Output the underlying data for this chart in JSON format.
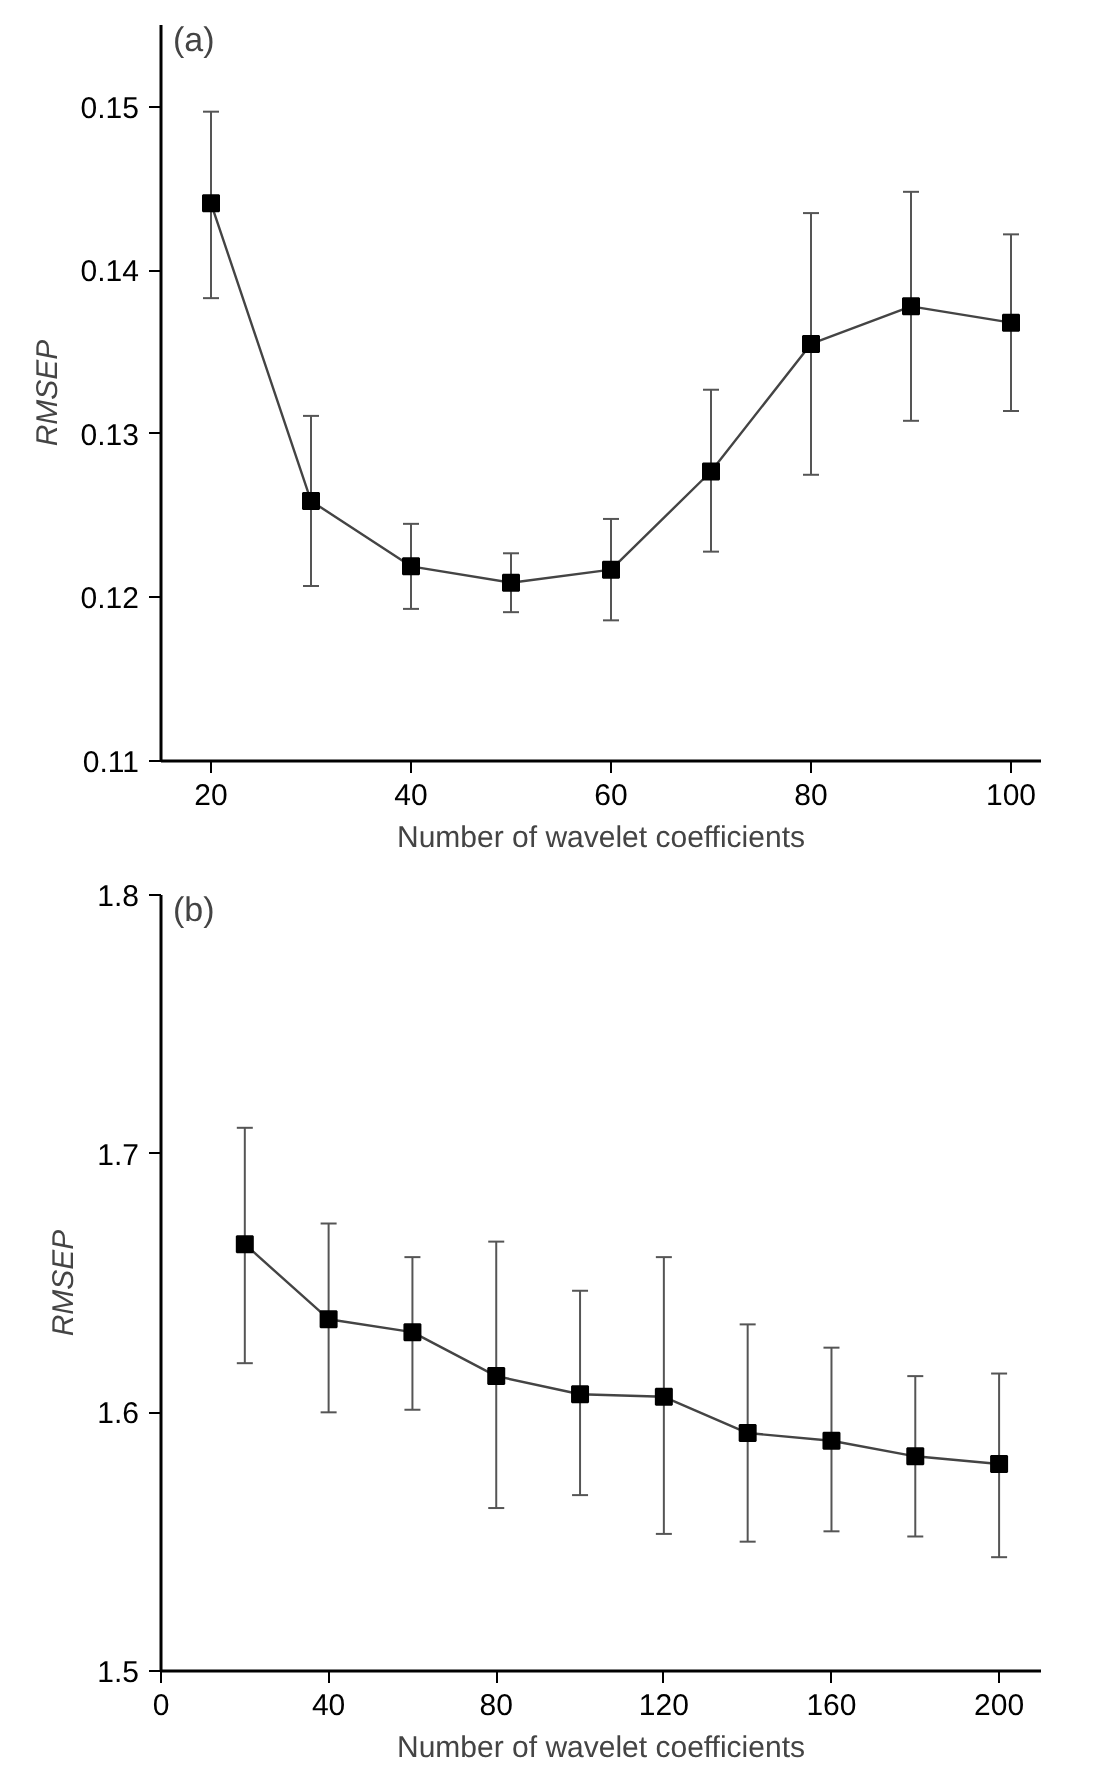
{
  "chart_data": [
    {
      "type": "line",
      "xlabel": "Number of wavelet coefficients",
      "ylabel": "RMSEP",
      "annotations": [
        "(a)"
      ],
      "marker": "square",
      "line_style": "solid",
      "x": [
        20,
        30,
        40,
        50,
        60,
        70,
        80,
        90,
        100
      ],
      "series": [
        {
          "color": "#000000",
          "values": [
            0.1441,
            0.1259,
            0.1219,
            0.1209,
            0.1217,
            0.1277,
            0.1355,
            0.1378,
            0.1368
          ],
          "errors": [
            [
              0.1383,
              0.1497
            ],
            [
              0.1207,
              0.1311
            ],
            [
              0.1193,
              0.1245
            ],
            [
              0.1191,
              0.1227
            ],
            [
              0.1186,
              0.1248
            ],
            [
              0.1228,
              0.1327
            ],
            [
              0.1275,
              0.1435
            ],
            [
              0.1308,
              0.1448
            ],
            [
              0.1314,
              0.1422
            ]
          ]
        }
      ],
      "xlim": [
        15,
        103
      ],
      "xticks": [
        20,
        40,
        60,
        80,
        100
      ],
      "ylim": [
        0.11,
        0.155
      ],
      "yticks": [
        0.11,
        0.12,
        0.13,
        0.14,
        0.15
      ]
    },
    {
      "type": "line",
      "xlabel": "Number of wavelet coefficients",
      "ylabel": "RMSEP",
      "annotations": [
        "(b)"
      ],
      "marker": "square",
      "line_style": "solid",
      "x": [
        20,
        40,
        60,
        80,
        100,
        120,
        140,
        160,
        180,
        200
      ],
      "series": [
        {
          "color": "#000000",
          "values": [
            1.665,
            1.636,
            1.631,
            1.614,
            1.607,
            1.606,
            1.592,
            1.589,
            1.583,
            1.58
          ],
          "errors": [
            [
              1.619,
              1.71
            ],
            [
              1.6,
              1.673
            ],
            [
              1.601,
              1.66
            ],
            [
              1.563,
              1.666
            ],
            [
              1.568,
              1.647
            ],
            [
              1.553,
              1.66
            ],
            [
              1.55,
              1.634
            ],
            [
              1.554,
              1.625
            ],
            [
              1.552,
              1.614
            ],
            [
              1.544,
              1.615
            ]
          ]
        }
      ],
      "xlim": [
        0,
        210
      ],
      "xticks": [
        0,
        40,
        80,
        120,
        160,
        200
      ],
      "ylim": [
        1.5,
        1.8
      ],
      "yticks": [
        1.5,
        1.6,
        1.7,
        1.8
      ]
    }
  ]
}
